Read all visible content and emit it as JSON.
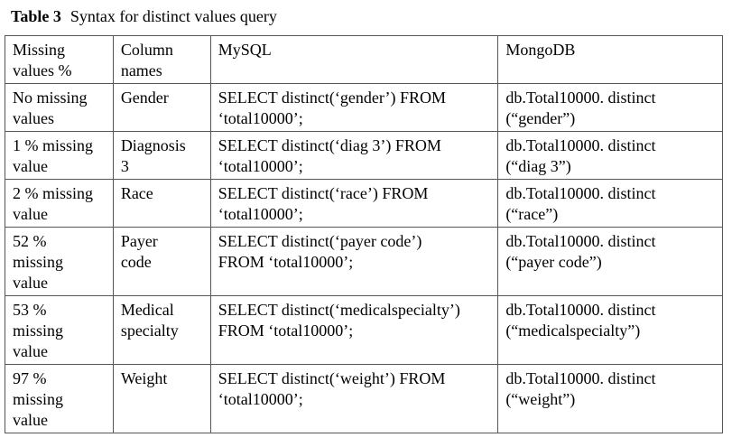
{
  "caption": {
    "label": "Table 3",
    "title": "Syntax for distinct values query"
  },
  "table": {
    "headers": [
      "Missing\nvalues %",
      "Column\nnames",
      "MySQL",
      "MongoDB"
    ],
    "rows": [
      [
        "No missing\nvalues",
        "Gender",
        "SELECT distinct(‘gender’) FROM\n‘total10000’;",
        "db.Total10000. distinct\n(“gender”)"
      ],
      [
        "1 % missing\nvalue",
        "Diagnosis\n3",
        "SELECT distinct(‘diag 3’) FROM\n‘total10000’;",
        "db.Total10000. distinct\n(“diag 3”)"
      ],
      [
        "2 % missing\nvalue",
        "Race",
        "SELECT distinct(‘race’) FROM\n‘total10000’;",
        "db.Total10000. distinct\n(“race”)"
      ],
      [
        "52 %\nmissing\nvalue",
        "Payer\ncode",
        "SELECT distinct(‘payer code’)\nFROM ‘total10000’;",
        "db.Total10000. distinct\n(“payer code”)"
      ],
      [
        "53 %\nmissing\nvalue",
        "Medical\nspecialty",
        "SELECT distinct(‘medicalspecialty’)\nFROM ‘total10000’;",
        "db.Total10000. distinct\n(“medicalspecialty”)"
      ],
      [
        "97 %\nmissing\nvalue",
        "Weight",
        "SELECT distinct(‘weight’) FROM\n‘total10000’;",
        "db.Total10000. distinct\n(“weight”)"
      ]
    ]
  }
}
